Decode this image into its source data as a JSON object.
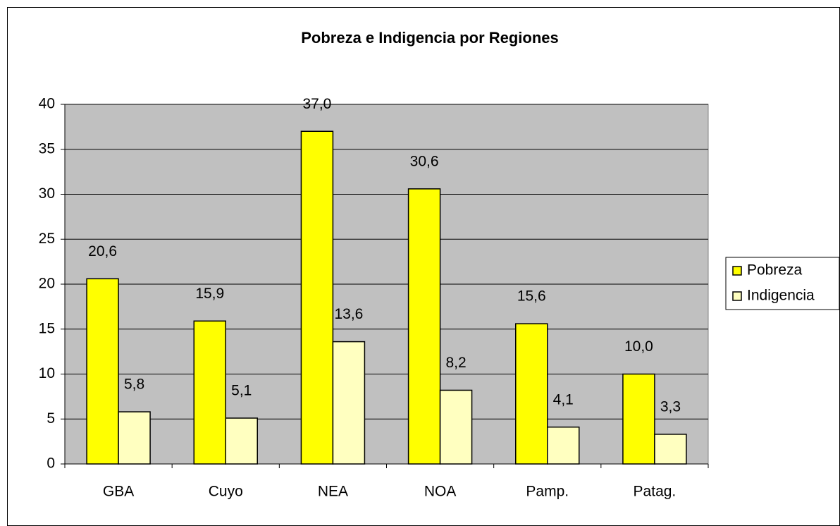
{
  "chart_data": {
    "type": "bar",
    "title": "Pobreza e Indigencia por Regiones",
    "categories": [
      "GBA",
      "Cuyo",
      "NEA",
      "NOA",
      "Pamp.",
      "Patag."
    ],
    "series": [
      {
        "name": "Pobreza",
        "color": "#ffff00",
        "values": [
          20.6,
          15.9,
          37.0,
          30.6,
          15.6,
          10.0
        ],
        "value_labels": [
          "20,6",
          "15,9",
          "37,0",
          "30,6",
          "15,6",
          "10,0"
        ]
      },
      {
        "name": "Indigencia",
        "color": "#ffffc0",
        "values": [
          5.8,
          5.1,
          13.6,
          8.2,
          4.1,
          3.3
        ],
        "value_labels": [
          "5,8",
          "5,1",
          "13,6",
          "8,2",
          "4,1",
          "3,3"
        ]
      }
    ],
    "ylim": [
      0,
      40
    ],
    "yticks": [
      0,
      5,
      10,
      15,
      20,
      25,
      30,
      35,
      40
    ],
    "grid": true,
    "plot_background": "#c0c0c0",
    "legend": "right"
  }
}
